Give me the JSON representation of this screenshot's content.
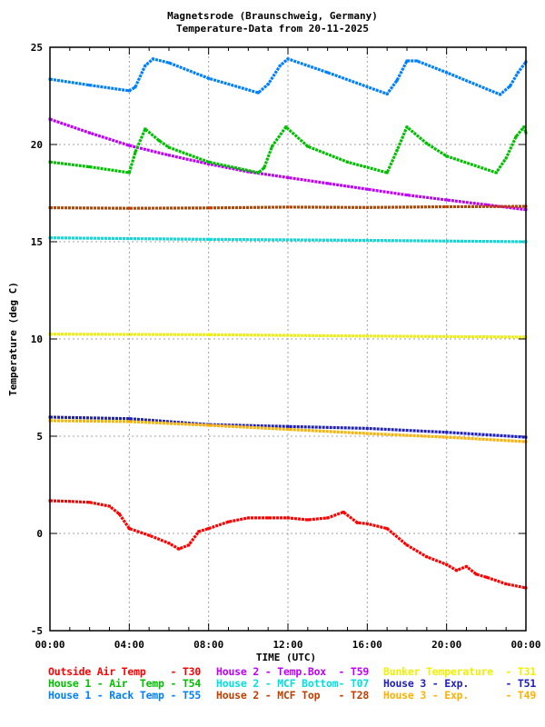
{
  "chart_data": {
    "type": "scatter",
    "title": "Magnetsrode (Braunschweig, Germany)",
    "subtitle": "Temperature-Data from 20-11-2025",
    "xlabel": "TIME (UTC)",
    "ylabel": "Temperature (deg C)",
    "xlim": [
      0,
      24
    ],
    "ylim": [
      -5,
      25
    ],
    "x_ticks": [
      0,
      4,
      8,
      12,
      16,
      20,
      24
    ],
    "x_tick_labels": [
      "00:00",
      "04:00",
      "08:00",
      "12:00",
      "16:00",
      "20:00",
      "00:00"
    ],
    "y_ticks": [
      -5,
      0,
      5,
      10,
      15,
      20,
      25
    ],
    "y_tick_labels": [
      "-5",
      "0",
      "5",
      "10",
      "15",
      "20",
      "25"
    ],
    "grid": true,
    "legend_position": "bottom",
    "series": [
      {
        "name": "Outside Air Temp",
        "id": "T30",
        "label": "Outside Air Temp    - T30",
        "color": "#ff0000",
        "points": [
          [
            0,
            1.68
          ],
          [
            1,
            1.65
          ],
          [
            2,
            1.6
          ],
          [
            3,
            1.4
          ],
          [
            3.5,
            1.0
          ],
          [
            4,
            0.25
          ],
          [
            5,
            -0.1
          ],
          [
            6,
            -0.5
          ],
          [
            6.5,
            -0.8
          ],
          [
            7,
            -0.6
          ],
          [
            7.5,
            0.1
          ],
          [
            8,
            0.25
          ],
          [
            9,
            0.6
          ],
          [
            10,
            0.8
          ],
          [
            11,
            0.8
          ],
          [
            12,
            0.8
          ],
          [
            13,
            0.7
          ],
          [
            14,
            0.8
          ],
          [
            14.8,
            1.1
          ],
          [
            15.5,
            0.55
          ],
          [
            16,
            0.5
          ],
          [
            17,
            0.25
          ],
          [
            18,
            -0.6
          ],
          [
            19,
            -1.2
          ],
          [
            20,
            -1.6
          ],
          [
            20.5,
            -1.9
          ],
          [
            21,
            -1.7
          ],
          [
            21.5,
            -2.1
          ],
          [
            22,
            -2.25
          ],
          [
            23,
            -2.6
          ],
          [
            24,
            -2.8
          ]
        ]
      },
      {
        "name": "House 2 - Temp.Box",
        "id": "T59",
        "label": "House 2 - Temp.Box  - T59",
        "color": "#c000ff",
        "points": [
          [
            0,
            21.3
          ],
          [
            2,
            20.6
          ],
          [
            4,
            19.95
          ],
          [
            6,
            19.45
          ],
          [
            8,
            19.0
          ],
          [
            10,
            18.6
          ],
          [
            12,
            18.3
          ],
          [
            14,
            18.0
          ],
          [
            16,
            17.7
          ],
          [
            18,
            17.4
          ],
          [
            20,
            17.15
          ],
          [
            22,
            16.9
          ],
          [
            24,
            16.65
          ]
        ]
      },
      {
        "name": "Bunker Temperature",
        "id": "T31",
        "label": "Bunker Temperature  - T31",
        "color": "#f0f000",
        "points": [
          [
            0,
            10.25
          ],
          [
            8,
            10.22
          ],
          [
            16,
            10.15
          ],
          [
            24,
            10.1
          ]
        ]
      },
      {
        "name": "House 1 - Air  Temp",
        "id": "T54",
        "label": "House 1 - Air  Temp - T54",
        "color": "#00c000",
        "points": [
          [
            0,
            19.1
          ],
          [
            2,
            18.85
          ],
          [
            4,
            18.55
          ],
          [
            4.3,
            19.6
          ],
          [
            4.8,
            20.8
          ],
          [
            5.5,
            20.2
          ],
          [
            6,
            19.85
          ],
          [
            8,
            19.1
          ],
          [
            10.5,
            18.55
          ],
          [
            10.8,
            18.8
          ],
          [
            11.2,
            19.9
          ],
          [
            11.9,
            20.9
          ],
          [
            13,
            19.9
          ],
          [
            15,
            19.1
          ],
          [
            17,
            18.55
          ],
          [
            17.5,
            19.7
          ],
          [
            18,
            20.9
          ],
          [
            19,
            20.05
          ],
          [
            20,
            19.4
          ],
          [
            22.5,
            18.55
          ],
          [
            23,
            19.3
          ],
          [
            23.5,
            20.4
          ],
          [
            23.9,
            20.9
          ],
          [
            24,
            20.6
          ]
        ]
      },
      {
        "name": "House 2 - MCF Bottom",
        "id": "T07",
        "label": "House 2 - MCF Bottom- T07",
        "color": "#00e0e0",
        "points": [
          [
            0,
            15.2
          ],
          [
            8,
            15.12
          ],
          [
            16,
            15.07
          ],
          [
            24,
            15.0
          ]
        ]
      },
      {
        "name": "House 3 - Exp.",
        "id": "T51",
        "label": "House 3 - Exp.      - T51",
        "color": "#2020c0",
        "points": [
          [
            0,
            5.98
          ],
          [
            4,
            5.9
          ],
          [
            8,
            5.6
          ],
          [
            12,
            5.5
          ],
          [
            16,
            5.4
          ],
          [
            20,
            5.2
          ],
          [
            24,
            4.95
          ]
        ]
      },
      {
        "name": "House 1 - Rack Temp",
        "id": "T55",
        "label": "House 1 - Rack Temp - T55",
        "color": "#0080ff",
        "points": [
          [
            0,
            23.36
          ],
          [
            2,
            23.05
          ],
          [
            4,
            22.76
          ],
          [
            4.3,
            22.95
          ],
          [
            4.8,
            24.05
          ],
          [
            5.2,
            24.4
          ],
          [
            6,
            24.2
          ],
          [
            8,
            23.4
          ],
          [
            10.5,
            22.66
          ],
          [
            11,
            23.1
          ],
          [
            11.6,
            24.05
          ],
          [
            12,
            24.4
          ],
          [
            14,
            23.7
          ],
          [
            17,
            22.6
          ],
          [
            17.5,
            23.3
          ],
          [
            18,
            24.3
          ],
          [
            18.5,
            24.3
          ],
          [
            20,
            23.7
          ],
          [
            22.7,
            22.57
          ],
          [
            23.2,
            23.0
          ],
          [
            23.6,
            23.7
          ],
          [
            24,
            24.25
          ]
        ]
      },
      {
        "name": "House 2 - MCF Top",
        "id": "T28",
        "label": "House 2 - MCF Top   - T28",
        "color": "#c04000",
        "points": [
          [
            0,
            16.75
          ],
          [
            4,
            16.72
          ],
          [
            8,
            16.74
          ],
          [
            12,
            16.78
          ],
          [
            16,
            16.76
          ],
          [
            20,
            16.8
          ],
          [
            24,
            16.82
          ]
        ]
      },
      {
        "name": "House 3 - Exp.",
        "id": "T49",
        "label": "House 3 - Exp.      - T49",
        "color": "#ffb000",
        "points": [
          [
            0,
            5.8
          ],
          [
            4,
            5.75
          ],
          [
            8,
            5.56
          ],
          [
            12,
            5.35
          ],
          [
            16,
            5.14
          ],
          [
            20,
            4.95
          ],
          [
            24,
            4.72
          ]
        ]
      }
    ]
  }
}
